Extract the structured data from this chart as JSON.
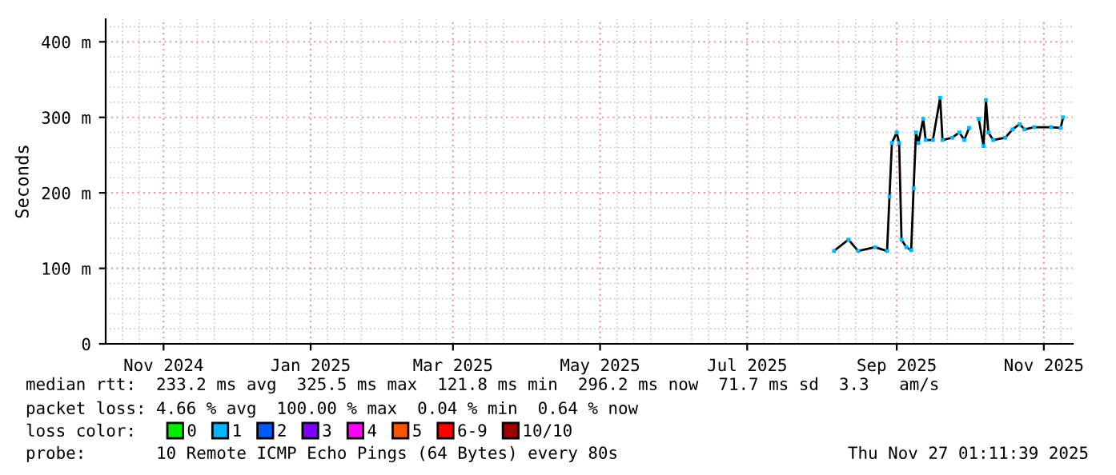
{
  "chart_data": {
    "type": "line",
    "ylabel": "Seconds",
    "x": [
      "2025-08-06",
      "2025-08-12",
      "2025-08-16",
      "2025-08-23",
      "2025-08-28",
      "2025-08-29",
      "2025-08-30",
      "2025-09-01",
      "2025-09-02",
      "2025-09-03",
      "2025-09-05",
      "2025-09-07",
      "2025-09-08",
      "2025-09-09",
      "2025-09-10",
      "2025-09-12",
      "2025-09-13",
      "2025-09-16",
      "2025-09-19",
      "2025-09-20",
      "2025-09-24",
      "2025-09-27",
      "2025-09-29",
      "2025-10-01",
      "2025-10-03",
      "2025-10-05",
      "2025-10-07",
      "2025-10-08",
      "2025-10-09",
      "2025-10-11",
      "2025-10-16",
      "2025-10-19",
      "2025-10-22",
      "2025-10-24",
      "2025-10-28",
      "2025-11-04",
      "2025-11-08",
      "2025-11-09"
    ],
    "series": [
      {
        "color": "#000000",
        "values": [
          123,
          138,
          123,
          128,
          123,
          195,
          266,
          280,
          266,
          138,
          128,
          124,
          206,
          280,
          266,
          298,
          270,
          270,
          326,
          270,
          273,
          280,
          270,
          286,
          null,
          298,
          262,
          323,
          280,
          270,
          273,
          284,
          291,
          284,
          287,
          287,
          286,
          300
        ]
      },
      {
        "type": "scatter",
        "marker": "square",
        "name": "0",
        "color": "#00ee00",
        "values": [
          null,
          null,
          null,
          null,
          null,
          null,
          null,
          null,
          null,
          null,
          null,
          null,
          null,
          null,
          null,
          null,
          null,
          null,
          null,
          null,
          null,
          null,
          null,
          null,
          null,
          null,
          null,
          null,
          null,
          null,
          null,
          null,
          null,
          null,
          null,
          null,
          null,
          null
        ]
      },
      {
        "type": "scatter",
        "marker": "square",
        "name": "1",
        "color": "#00b8ff",
        "values": [
          123,
          138,
          123,
          128,
          123,
          195,
          266,
          280,
          266,
          138,
          128,
          124,
          206,
          280,
          266,
          298,
          270,
          270,
          326,
          270,
          273,
          280,
          270,
          286,
          null,
          298,
          262,
          323,
          280,
          270,
          273,
          284,
          291,
          284,
          287,
          287,
          286,
          300
        ]
      },
      {
        "type": "scatter",
        "marker": "square",
        "name": "2",
        "color": "#0059ff",
        "values": [
          null,
          null,
          null,
          null,
          null,
          null,
          null,
          null,
          null,
          null,
          null,
          null,
          null,
          null,
          null,
          null,
          null,
          null,
          null,
          null,
          null,
          null,
          null,
          null,
          null,
          null,
          null,
          null,
          null,
          null,
          null,
          null,
          null,
          null,
          null,
          null,
          null,
          null
        ]
      },
      {
        "type": "scatter",
        "marker": "square",
        "name": "3",
        "color": "#7e00ff",
        "values": [
          null,
          null,
          null,
          null,
          null,
          null,
          null,
          null,
          null,
          null,
          null,
          null,
          null,
          null,
          null,
          null,
          null,
          null,
          null,
          null,
          null,
          null,
          null,
          null,
          null,
          null,
          null,
          null,
          null,
          null,
          null,
          null,
          null,
          null,
          null,
          null,
          null,
          null
        ]
      },
      {
        "type": "scatter",
        "marker": "square",
        "name": "4",
        "color": "#ff00ff",
        "values": [
          null,
          null,
          null,
          null,
          null,
          null,
          null,
          null,
          null,
          null,
          null,
          null,
          null,
          null,
          null,
          null,
          null,
          null,
          null,
          null,
          null,
          null,
          null,
          null,
          null,
          null,
          null,
          null,
          null,
          null,
          null,
          null,
          null,
          null,
          null,
          null,
          null,
          null
        ]
      },
      {
        "type": "scatter",
        "marker": "square",
        "name": "5",
        "color": "#ff5500",
        "values": [
          null,
          null,
          null,
          null,
          null,
          null,
          null,
          null,
          null,
          null,
          null,
          null,
          null,
          null,
          null,
          null,
          null,
          null,
          null,
          null,
          null,
          null,
          null,
          null,
          null,
          null,
          null,
          null,
          null,
          null,
          null,
          null,
          null,
          null,
          null,
          null,
          null,
          null
        ]
      },
      {
        "type": "scatter",
        "marker": "square",
        "name": "6-9",
        "color": "#ff0000",
        "values": [
          null,
          null,
          null,
          null,
          null,
          null,
          null,
          null,
          null,
          null,
          null,
          null,
          null,
          null,
          null,
          null,
          null,
          null,
          null,
          null,
          null,
          null,
          null,
          null,
          null,
          null,
          null,
          null,
          null,
          null,
          null,
          null,
          null,
          null,
          null,
          null,
          null,
          null
        ]
      },
      {
        "type": "scatter",
        "marker": "square",
        "name": "10/10",
        "color": "#a10000",
        "values": [
          null,
          null,
          null,
          null,
          null,
          null,
          null,
          null,
          null,
          null,
          null,
          null,
          null,
          null,
          null,
          null,
          null,
          null,
          null,
          null,
          null,
          null,
          null,
          null,
          null,
          null,
          null,
          null,
          null,
          null,
          null,
          null,
          null,
          null,
          null,
          null,
          null,
          null
        ]
      }
    ],
    "xlim": [
      "2024-10-08",
      "2025-11-13"
    ],
    "xticks": [
      {
        "value": "2024-11-01",
        "label": "Nov 2024"
      },
      {
        "value": "2025-01-01",
        "label": "Jan 2025"
      },
      {
        "value": "2025-03-01",
        "label": "Mar 2025"
      },
      {
        "value": "2025-05-01",
        "label": "May 2025"
      },
      {
        "value": "2025-07-01",
        "label": "Jul 2025"
      },
      {
        "value": "2025-09-01",
        "label": "Sep 2025"
      },
      {
        "value": "2025-11-01",
        "label": "Nov 2025"
      }
    ],
    "ylim": [
      0,
      430
    ],
    "yticks": [
      0,
      {
        "value": 100,
        "label": "100 m"
      },
      {
        "value": 200,
        "label": "200 m"
      },
      {
        "value": 300,
        "label": "300 m"
      },
      {
        "value": 400,
        "label": "400 m"
      }
    ],
    "grid": true,
    "legend": "bottom",
    "legend_title": "loss color:",
    "annotations": [
      "median rtt:  233.2 ms avg  325.5 ms max  121.8 ms min  296.2 ms now  71.7 ms sd  3.3   am/s",
      "packet loss: 4.66 % avg  100.00 % max  0.04 % min  0.64 % now",
      "probe:       10 Remote ICMP Echo Pings (64 Bytes) every 80s",
      "Thu Nov 27 01:11:39 2025"
    ]
  }
}
